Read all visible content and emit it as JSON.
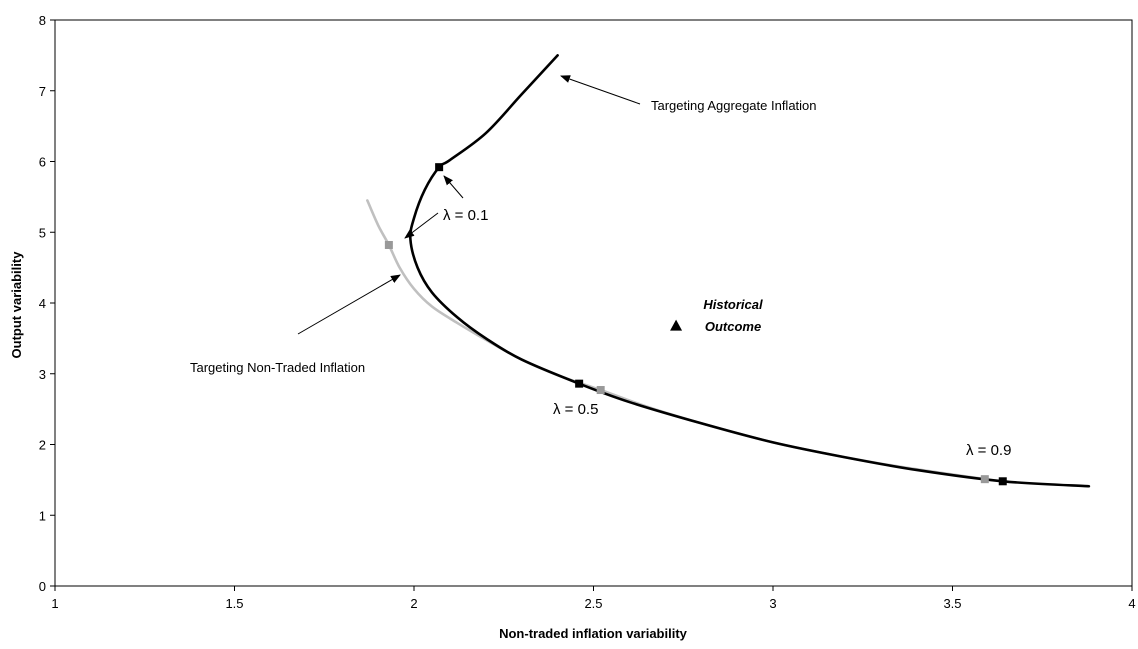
{
  "chart_data": {
    "type": "line",
    "xlabel": "Non-traded inflation variability",
    "ylabel": "Output variability",
    "xlim": [
      1,
      4
    ],
    "ylim": [
      0,
      8
    ],
    "x_ticks": [
      "1",
      "1.5",
      "2",
      "2.5",
      "3",
      "3.5",
      "4"
    ],
    "y_ticks": [
      "0",
      "1",
      "2",
      "3",
      "4",
      "5",
      "6",
      "7",
      "8"
    ],
    "grid": false,
    "legend": "none",
    "series": [
      {
        "name": "Targeting Aggregate Inflation",
        "color": "#000000",
        "points": [
          [
            2.4,
            7.5
          ],
          [
            2.3,
            6.95
          ],
          [
            2.2,
            6.4
          ],
          [
            2.1,
            6.02
          ],
          [
            2.07,
            5.92
          ],
          [
            2.03,
            5.6
          ],
          [
            2.0,
            5.2
          ],
          [
            1.99,
            4.9
          ],
          [
            2.01,
            4.5
          ],
          [
            2.05,
            4.15
          ],
          [
            2.12,
            3.8
          ],
          [
            2.2,
            3.5
          ],
          [
            2.3,
            3.2
          ],
          [
            2.46,
            2.86
          ],
          [
            2.6,
            2.6
          ],
          [
            2.8,
            2.3
          ],
          [
            3.0,
            2.03
          ],
          [
            3.2,
            1.82
          ],
          [
            3.4,
            1.64
          ],
          [
            3.64,
            1.48
          ],
          [
            3.88,
            1.41
          ]
        ],
        "markers": [
          [
            2.07,
            5.92
          ],
          [
            2.46,
            2.86
          ],
          [
            3.64,
            1.48
          ]
        ]
      },
      {
        "name": "Targeting Non-Traded Inflation",
        "color": "#c0c0c0",
        "points": [
          [
            1.87,
            5.45
          ],
          [
            1.9,
            5.1
          ],
          [
            1.93,
            4.82
          ],
          [
            1.96,
            4.5
          ],
          [
            2.0,
            4.2
          ],
          [
            2.05,
            3.95
          ],
          [
            2.12,
            3.72
          ],
          [
            2.2,
            3.48
          ],
          [
            2.3,
            3.2
          ],
          [
            2.4,
            2.98
          ],
          [
            2.52,
            2.77
          ],
          [
            2.7,
            2.45
          ],
          [
            3.0,
            2.03
          ],
          [
            3.3,
            1.73
          ],
          [
            3.59,
            1.51
          ]
        ],
        "markers": [
          [
            1.93,
            4.82
          ],
          [
            2.52,
            2.77
          ],
          [
            3.59,
            1.51
          ]
        ]
      }
    ],
    "historical_outcome": {
      "label_line1": "Historical",
      "label_line2": "Outcome",
      "x": 2.73,
      "y": 3.68
    },
    "annotations": {
      "aggregate_label": "Targeting Aggregate Inflation",
      "nontraded_label": "Targeting Non-Traded Inflation",
      "lambda_01": "λ = 0.1",
      "lambda_05": "λ = 0.5",
      "lambda_09": "λ = 0.9"
    }
  }
}
